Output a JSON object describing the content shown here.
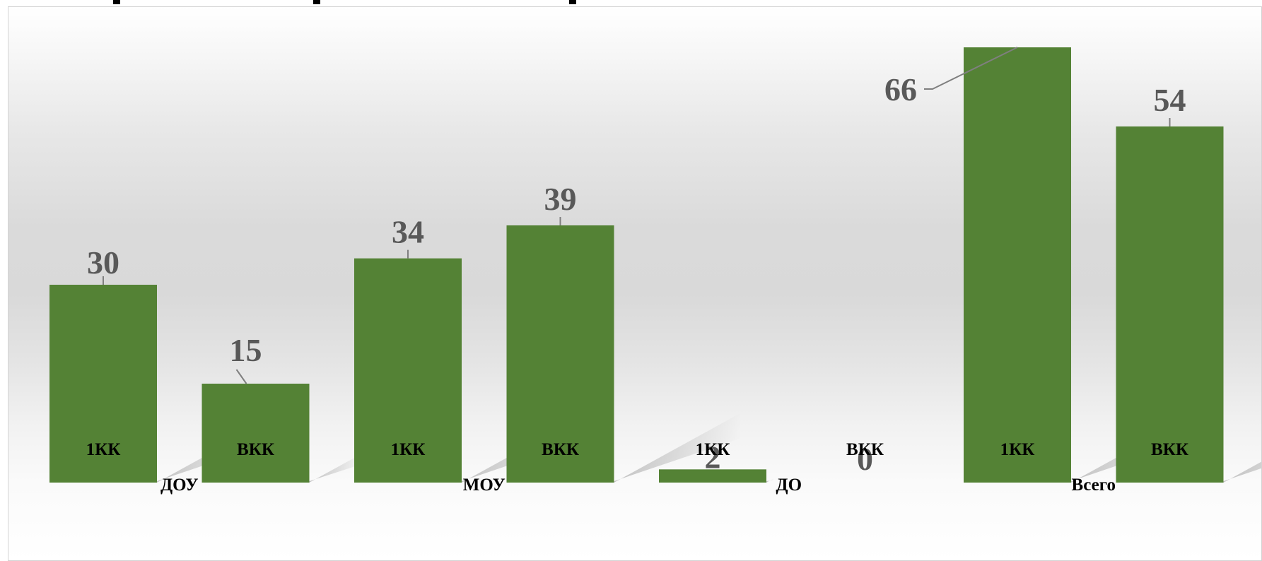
{
  "chart_data": {
    "type": "bar",
    "groups": [
      {
        "label": "ДОУ",
        "categories": [
          "1КК",
          "ВКК"
        ],
        "values": [
          30,
          15
        ]
      },
      {
        "label": "МОУ",
        "categories": [
          "1КК",
          "ВКК"
        ],
        "values": [
          34,
          39
        ]
      },
      {
        "label": "ДО",
        "categories": [
          "1КК",
          "ВКК"
        ],
        "values": [
          2,
          0
        ]
      },
      {
        "label": "Всего",
        "categories": [
          "1КК",
          "ВКК"
        ],
        "values": [
          66,
          54
        ]
      }
    ],
    "ylim": [
      0,
      66
    ],
    "grid": false,
    "legend": "none",
    "colors": {
      "bar": "#548235",
      "data_label": "#595959",
      "leader_line": "#7f7f7f",
      "axis_text": "#000000"
    }
  }
}
